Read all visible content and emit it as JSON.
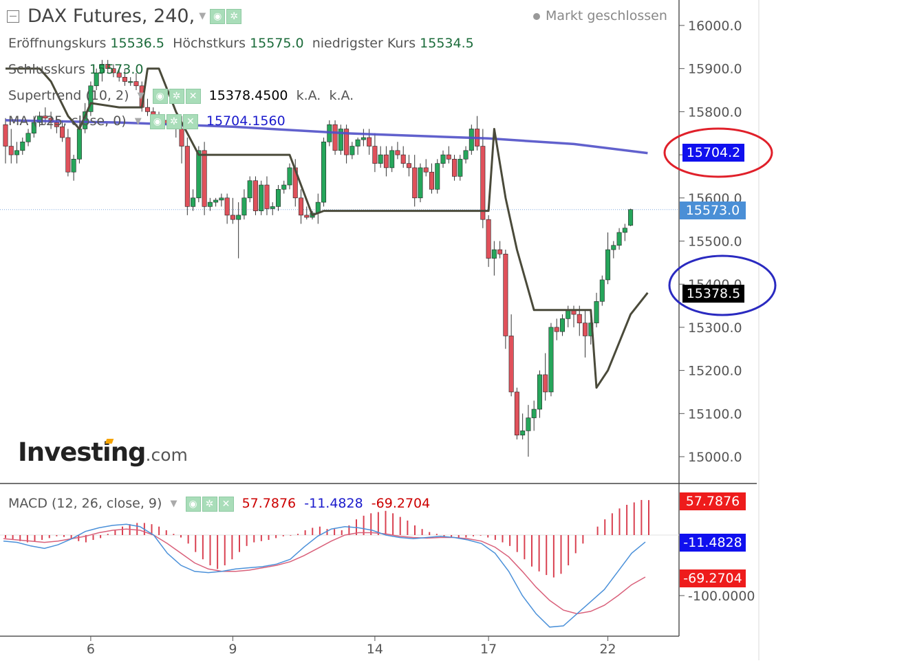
{
  "header": {
    "title": "DAX Futures, 240,",
    "market_status": "Markt geschlossen"
  },
  "ohlc": {
    "open_label": "Eröffnungskurs",
    "open_value": "15536.5",
    "high_label": "Höchstkurs",
    "high_value": "15575.0",
    "low_label": "niedrigster Kurs",
    "low_value": "15534.5",
    "close_label": "Schlusskurs",
    "close_value": "15573.0"
  },
  "indicators": {
    "supertrend": {
      "label": "Supertrend (10, 2)",
      "value": "15378.4500",
      "v2": "k.A.",
      "v3": "k.A."
    },
    "ma": {
      "label": "MA (125, close, 0)",
      "value": "15704.1560"
    },
    "macd": {
      "label": "MACD (12, 26, close, 9)",
      "v1": "57.7876",
      "v2": "-11.4828",
      "v3": "-69.2704"
    }
  },
  "price_tags": {
    "ma": "15704.2",
    "last": "15573.0",
    "supertrend": "15378.5",
    "macd_hist": "57.7876",
    "macd_line": "-11.4828",
    "macd_signal": "-69.2704"
  },
  "colors": {
    "up": "#26a65b",
    "down": "#e0515b",
    "ma": "#5050c8",
    "supertrend": "#4a4a3a",
    "macd_line": "#4a90d9",
    "macd_signal": "#d9607a",
    "hist": "#d94050",
    "tag_blue": "#1010ee",
    "tag_last": "#4a8fd6",
    "tag_black": "#000000",
    "tag_red": "#ee1c1c",
    "ring_red": "#e0202a",
    "ring_blue": "#2a2ac0"
  },
  "brand": "Investing",
  "brand_suffix": ".com",
  "chart_data": {
    "type": "candlestick",
    "title": "DAX Futures, 240,",
    "y_ticks": [
      "16000.0",
      "15900.0",
      "15800.0",
      "15700.0",
      "15600.0",
      "15500.0",
      "15400.0",
      "15300.0",
      "15200.0",
      "15100.0",
      "15000.0"
    ],
    "ylim": [
      14930,
      16050
    ],
    "x_ticks": [
      {
        "label": "6",
        "index": 15
      },
      {
        "label": "9",
        "index": 40
      },
      {
        "label": "14",
        "index": 65
      },
      {
        "label": "17",
        "index": 85
      },
      {
        "label": "22",
        "index": 106
      }
    ],
    "candles": [
      [
        15770,
        15785,
        15680,
        15720
      ],
      [
        15720,
        15760,
        15680,
        15700
      ],
      [
        15700,
        15730,
        15680,
        15710
      ],
      [
        15710,
        15740,
        15700,
        15730
      ],
      [
        15730,
        15760,
        15720,
        15750
      ],
      [
        15750,
        15790,
        15740,
        15775
      ],
      [
        15775,
        15800,
        15765,
        15790
      ],
      [
        15790,
        15810,
        15770,
        15785
      ],
      [
        15785,
        15800,
        15760,
        15775
      ],
      [
        15775,
        15790,
        15750,
        15765
      ],
      [
        15765,
        15780,
        15730,
        15740
      ],
      [
        15740,
        15760,
        15650,
        15660
      ],
      [
        15660,
        15700,
        15640,
        15690
      ],
      [
        15690,
        15770,
        15680,
        15760
      ],
      [
        15760,
        15820,
        15750,
        15800
      ],
      [
        15800,
        15870,
        15790,
        15860
      ],
      [
        15860,
        15900,
        15850,
        15890
      ],
      [
        15890,
        15920,
        15870,
        15910
      ],
      [
        15910,
        15920,
        15890,
        15900
      ],
      [
        15900,
        15910,
        15880,
        15890
      ],
      [
        15890,
        15900,
        15870,
        15880
      ],
      [
        15880,
        15900,
        15860,
        15870
      ],
      [
        15870,
        15880,
        15860,
        15870
      ],
      [
        15870,
        15890,
        15850,
        15860
      ],
      [
        15860,
        15870,
        15800,
        15810
      ],
      [
        15810,
        15830,
        15790,
        15800
      ],
      [
        15800,
        15810,
        15780,
        15790
      ],
      [
        15790,
        15800,
        15770,
        15780
      ],
      [
        15780,
        15790,
        15760,
        15770
      ],
      [
        15770,
        15780,
        15760,
        15765
      ],
      [
        15765,
        15780,
        15740,
        15760
      ],
      [
        15760,
        15790,
        15680,
        15720
      ],
      [
        15720,
        15740,
        15560,
        15580
      ],
      [
        15580,
        15620,
        15570,
        15600
      ],
      [
        15600,
        15720,
        15590,
        15710
      ],
      [
        15710,
        15730,
        15560,
        15580
      ],
      [
        15580,
        15600,
        15570,
        15590
      ],
      [
        15590,
        15600,
        15580,
        15595
      ],
      [
        15595,
        15610,
        15580,
        15600
      ],
      [
        15600,
        15610,
        15540,
        15560
      ],
      [
        15560,
        15600,
        15540,
        15550
      ],
      [
        15550,
        15590,
        15460,
        15560
      ],
      [
        15560,
        15620,
        15550,
        15600
      ],
      [
        15600,
        15650,
        15590,
        15640
      ],
      [
        15640,
        15650,
        15560,
        15570
      ],
      [
        15570,
        15640,
        15560,
        15630
      ],
      [
        15630,
        15650,
        15560,
        15575
      ],
      [
        15575,
        15590,
        15560,
        15580
      ],
      [
        15580,
        15630,
        15570,
        15620
      ],
      [
        15620,
        15640,
        15610,
        15630
      ],
      [
        15630,
        15680,
        15620,
        15670
      ],
      [
        15670,
        15690,
        15580,
        15600
      ],
      [
        15600,
        15620,
        15540,
        15560
      ],
      [
        15560,
        15580,
        15550,
        15555
      ],
      [
        15555,
        15570,
        15550,
        15565
      ],
      [
        15565,
        15610,
        15540,
        15590
      ],
      [
        15590,
        15740,
        15580,
        15730
      ],
      [
        15730,
        15780,
        15720,
        15770
      ],
      [
        15770,
        15780,
        15700,
        15710
      ],
      [
        15710,
        15770,
        15700,
        15760
      ],
      [
        15760,
        15770,
        15680,
        15700
      ],
      [
        15700,
        15730,
        15690,
        15720
      ],
      [
        15720,
        15740,
        15700,
        15735
      ],
      [
        15735,
        15760,
        15720,
        15740
      ],
      [
        15740,
        15760,
        15700,
        15720
      ],
      [
        15720,
        15750,
        15660,
        15680
      ],
      [
        15680,
        15720,
        15670,
        15700
      ],
      [
        15700,
        15720,
        15650,
        15670
      ],
      [
        15670,
        15720,
        15660,
        15710
      ],
      [
        15710,
        15730,
        15690,
        15700
      ],
      [
        15700,
        15720,
        15670,
        15680
      ],
      [
        15680,
        15700,
        15650,
        15670
      ],
      [
        15670,
        15700,
        15580,
        15600
      ],
      [
        15600,
        15680,
        15590,
        15670
      ],
      [
        15670,
        15690,
        15650,
        15660
      ],
      [
        15660,
        15680,
        15610,
        15620
      ],
      [
        15620,
        15690,
        15610,
        15680
      ],
      [
        15680,
        15710,
        15670,
        15700
      ],
      [
        15700,
        15720,
        15680,
        15690
      ],
      [
        15690,
        15700,
        15640,
        15650
      ],
      [
        15650,
        15700,
        15640,
        15690
      ],
      [
        15690,
        15720,
        15680,
        15710
      ],
      [
        15710,
        15770,
        15700,
        15760
      ],
      [
        15760,
        15790,
        15710,
        15720
      ],
      [
        15720,
        15760,
        15530,
        15550
      ],
      [
        15550,
        15560,
        15440,
        15460
      ],
      [
        15460,
        15500,
        15420,
        15480
      ],
      [
        15480,
        15500,
        15460,
        15470
      ],
      [
        15470,
        15480,
        15250,
        15280
      ],
      [
        15280,
        15330,
        15140,
        15150
      ],
      [
        15150,
        15160,
        15040,
        15050
      ],
      [
        15050,
        15100,
        15040,
        15060
      ],
      [
        15060,
        15120,
        15000,
        15090
      ],
      [
        15090,
        15130,
        15060,
        15110
      ],
      [
        15110,
        15200,
        15090,
        15190
      ],
      [
        15190,
        15240,
        15130,
        15150
      ],
      [
        15150,
        15310,
        15140,
        15300
      ],
      [
        15300,
        15320,
        15270,
        15290
      ],
      [
        15290,
        15330,
        15280,
        15320
      ],
      [
        15320,
        15350,
        15300,
        15340
      ],
      [
        15340,
        15350,
        15300,
        15330
      ],
      [
        15330,
        15350,
        15280,
        15310
      ],
      [
        15310,
        15340,
        15230,
        15280
      ],
      [
        15280,
        15320,
        15260,
        15310
      ],
      [
        15310,
        15380,
        15300,
        15360
      ],
      [
        15360,
        15420,
        15350,
        15410
      ],
      [
        15410,
        15520,
        15400,
        15480
      ],
      [
        15480,
        15500,
        15460,
        15490
      ],
      [
        15490,
        15530,
        15480,
        15520
      ],
      [
        15520,
        15540,
        15500,
        15530
      ],
      [
        15536.5,
        15575,
        15534.5,
        15573
      ]
    ],
    "ma_125": [
      [
        0,
        15780
      ],
      [
        20,
        15775
      ],
      [
        40,
        15765
      ],
      [
        60,
        15750
      ],
      [
        85,
        15738
      ],
      [
        100,
        15725
      ],
      [
        113,
        15704
      ]
    ],
    "supertrend": [
      [
        0,
        15900
      ],
      [
        6,
        15900
      ],
      [
        8,
        15870
      ],
      [
        11,
        15790
      ],
      [
        13,
        15760
      ],
      [
        15,
        15820
      ],
      [
        20,
        15810
      ],
      [
        24,
        15810
      ],
      [
        25,
        15900
      ],
      [
        27,
        15900
      ],
      [
        30,
        15800
      ],
      [
        34,
        15700
      ],
      [
        50,
        15700
      ],
      [
        54,
        15560
      ],
      [
        56,
        15570
      ],
      [
        64,
        15570
      ],
      [
        70,
        15570
      ],
      [
        85,
        15570
      ],
      [
        86,
        15760
      ],
      [
        88,
        15600
      ],
      [
        90,
        15480
      ],
      [
        93,
        15340
      ],
      [
        96,
        15340
      ],
      [
        103,
        15340
      ],
      [
        104,
        15160
      ],
      [
        106,
        15200
      ],
      [
        110,
        15330
      ],
      [
        113,
        15380
      ]
    ],
    "macd": {
      "ylim": [
        -160,
        90
      ],
      "hist": [
        -5,
        -8,
        -10,
        -12,
        -10,
        -8,
        -5,
        -2,
        -3,
        -6,
        -10,
        -12,
        -8,
        -5,
        2,
        8,
        14,
        18,
        20,
        20,
        18,
        14,
        8,
        2,
        -4,
        -14,
        -28,
        -40,
        -50,
        -56,
        -50,
        -40,
        -28,
        -18,
        -12,
        -10,
        -8,
        -5,
        -2,
        -1,
        2,
        8,
        12,
        14,
        10,
        10,
        8,
        16,
        26,
        32,
        36,
        38,
        40,
        36,
        30,
        24,
        16,
        10,
        5,
        2,
        -2,
        -4,
        -6,
        -4,
        -2,
        -1,
        -4,
        -8,
        -12,
        -18,
        -28,
        -40,
        -52,
        -60,
        -66,
        -70,
        -64,
        -50,
        -30,
        -14,
        0,
        14,
        26,
        36,
        44,
        50,
        54,
        58,
        57.79
      ],
      "macd_line": [
        -10,
        -12,
        -18,
        -22,
        -16,
        -6,
        6,
        12,
        16,
        18,
        14,
        0,
        -30,
        -50,
        -60,
        -62,
        -60,
        -56,
        -54,
        -52,
        -48,
        -40,
        -20,
        -2,
        10,
        14,
        12,
        8,
        0,
        -4,
        -6,
        -4,
        -2,
        -4,
        -8,
        -14,
        -30,
        -60,
        -100,
        -130,
        -152,
        -150,
        -130,
        -110,
        -90,
        -60,
        -30,
        -11.48
      ],
      "signal_line": [
        -6,
        -8,
        -10,
        -12,
        -10,
        -6,
        -2,
        4,
        8,
        10,
        8,
        0,
        -14,
        -30,
        -46,
        -56,
        -60,
        -60,
        -58,
        -54,
        -50,
        -44,
        -34,
        -22,
        -10,
        0,
        4,
        4,
        2,
        -2,
        -4,
        -5,
        -4,
        -4,
        -6,
        -10,
        -20,
        -36,
        -60,
        -86,
        -108,
        -124,
        -130,
        -126,
        -116,
        -100,
        -82,
        -69.27
      ],
      "y_ticks": [
        "-100.0000"
      ]
    }
  }
}
